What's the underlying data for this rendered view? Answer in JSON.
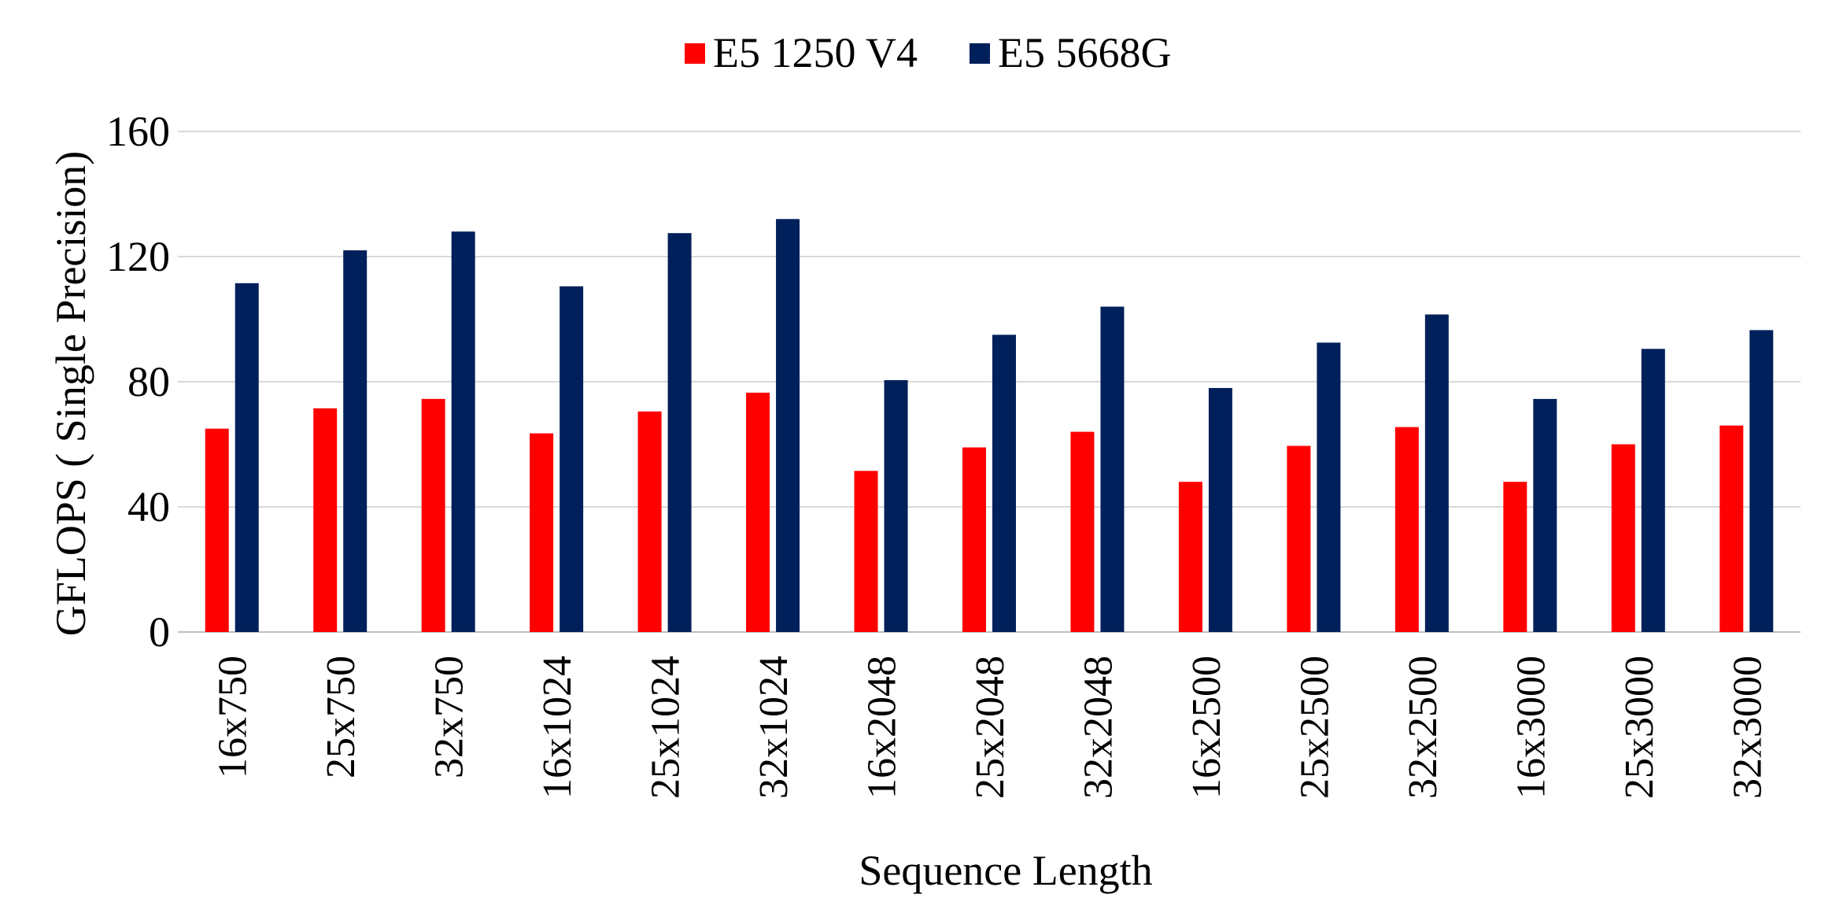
{
  "chart_data": {
    "type": "bar",
    "title": "",
    "xlabel": "Sequence Length",
    "ylabel": "GFLOPS ( Single Precision)",
    "ylim": [
      0,
      160
    ],
    "yticks": [
      0,
      40,
      80,
      120,
      160
    ],
    "grid": true,
    "legend_position": "top-center",
    "categories": [
      "16x750",
      "25x750",
      "32x750",
      "16x1024",
      "25x1024",
      "32x1024",
      "16x2048",
      "25x2048",
      "32x2048",
      "16x2500",
      "25x2500",
      "32x2500",
      "16x3000",
      "25x3000",
      "32x3000"
    ],
    "series": [
      {
        "name": "E5 1250 V4",
        "color": "#ff0000",
        "values": [
          65,
          71.5,
          74.5,
          63.5,
          70.5,
          76.5,
          51.5,
          59,
          64,
          48,
          59.5,
          65.5,
          48,
          60,
          66
        ]
      },
      {
        "name": "E5 5668G",
        "color": "#00205b",
        "values": [
          111.5,
          122,
          128,
          110.5,
          127.5,
          132,
          80.5,
          95,
          104,
          78,
          92.5,
          101.5,
          74.5,
          90.5,
          96.5
        ]
      }
    ]
  }
}
